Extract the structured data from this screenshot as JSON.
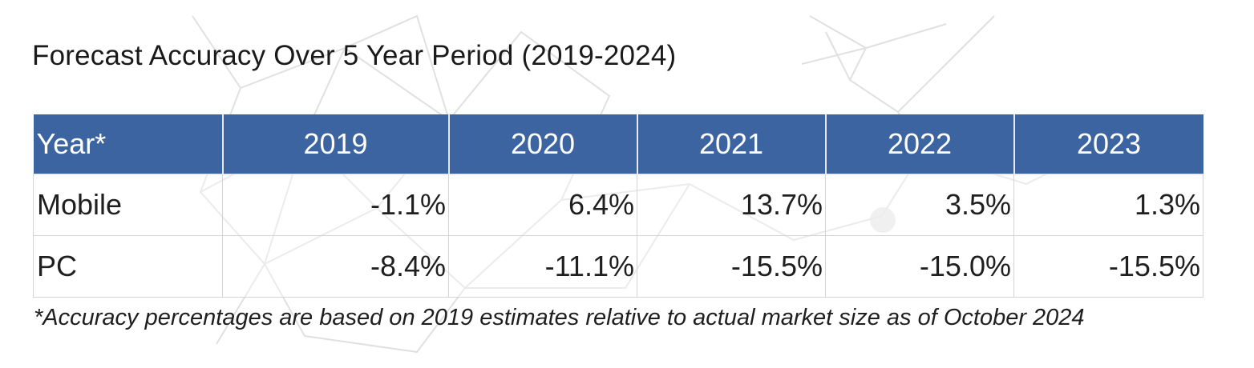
{
  "chart_data": {
    "type": "table",
    "title": "Forecast Accuracy Over 5 Year Period (2019-2024)",
    "header_label": "Year*",
    "columns": [
      "2019",
      "2020",
      "2021",
      "2022",
      "2023"
    ],
    "rows": [
      {
        "label": "Mobile",
        "values": [
          "-1.1%",
          "6.4%",
          "13.7%",
          "3.5%",
          "1.3%"
        ]
      },
      {
        "label": "PC",
        "values": [
          "-8.4%",
          "-11.1%",
          "-15.5%",
          "-15.0%",
          "-15.5%"
        ]
      }
    ],
    "footnote": "*Accuracy percentages are based on 2019 estimates relative to actual market size as of October 2024"
  },
  "colors": {
    "header_bg": "#3b64a0",
    "header_text": "#ffffff",
    "grid": "#d4d4d4",
    "pattern": "#c9c9c9"
  }
}
